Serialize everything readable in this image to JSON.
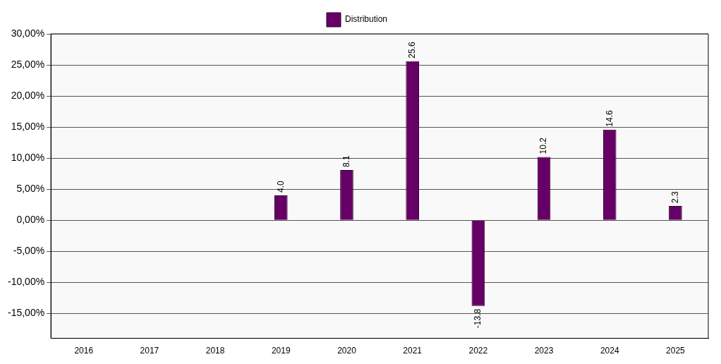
{
  "chart_data": {
    "type": "bar",
    "categories": [
      "2016",
      "2017",
      "2018",
      "2019",
      "2020",
      "2021",
      "2022",
      "2023",
      "2024",
      "2025"
    ],
    "series": [
      {
        "name": "Distribution",
        "color": "#660066",
        "values": [
          null,
          null,
          null,
          4.0,
          8.1,
          25.6,
          -13.8,
          10.2,
          14.6,
          2.3
        ],
        "value_labels": [
          null,
          null,
          null,
          "4.0",
          "8.1",
          "25.6",
          "-13.8",
          "10.2",
          "14.6",
          "2.3"
        ]
      }
    ],
    "ylim": [
      -19,
      30
    ],
    "yticks": [
      {
        "value": -15,
        "label": "-15,00%"
      },
      {
        "value": -10,
        "label": "-10,00%"
      },
      {
        "value": -5,
        "label": "-5,00%"
      },
      {
        "value": 0,
        "label": "0,00%"
      },
      {
        "value": 5,
        "label": "5,00%"
      },
      {
        "value": 10,
        "label": "10,00%"
      },
      {
        "value": 15,
        "label": "15,00%"
      },
      {
        "value": 20,
        "label": "20,00%"
      },
      {
        "value": 25,
        "label": "25,00%"
      },
      {
        "value": 30,
        "label": "30,00%"
      }
    ],
    "grid": "y",
    "legend": "top"
  }
}
